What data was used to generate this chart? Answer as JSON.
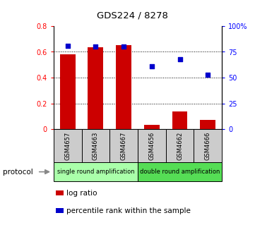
{
  "title": "GDS224 / 8278",
  "categories": [
    "GSM4657",
    "GSM4663",
    "GSM4667",
    "GSM4656",
    "GSM4662",
    "GSM4666"
  ],
  "log_ratio": [
    0.58,
    0.635,
    0.65,
    0.035,
    0.135,
    0.07
  ],
  "percentile_rank": [
    81,
    80,
    80,
    61,
    68,
    53
  ],
  "left_ylim": [
    0,
    0.8
  ],
  "right_ylim": [
    0,
    100
  ],
  "left_yticks": [
    0,
    0.2,
    0.4,
    0.6,
    0.8
  ],
  "left_yticklabels": [
    "0",
    "0.2",
    "0.4",
    "0.6",
    "0.8"
  ],
  "right_yticks": [
    0,
    25,
    50,
    75,
    100
  ],
  "right_yticklabels": [
    "0",
    "25",
    "50",
    "75",
    "100%"
  ],
  "bar_color": "#cc0000",
  "dot_color": "#0000cc",
  "group1_color": "#aaffaa",
  "group2_color": "#55dd55",
  "group1_label": "single round amplification",
  "group2_label": "double round amplification",
  "protocol_label": "protocol",
  "legend_label1": "log ratio",
  "legend_label2": "percentile rank within the sample",
  "grid_yticks": [
    0.2,
    0.4,
    0.6
  ],
  "bar_width": 0.55
}
